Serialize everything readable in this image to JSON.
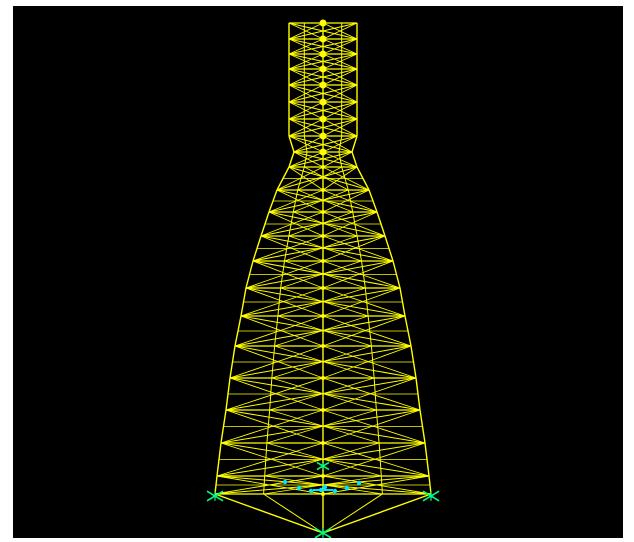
{
  "viewport": {
    "background": "#000000",
    "page_background": "#ffffff"
  },
  "model": {
    "type": "lattice-tower-wireframe",
    "member_color": "#ffff00",
    "support_color": "#00ff7f",
    "restraint_color": "#00e5ff",
    "joint_color": "#ffff00",
    "text_labels": []
  }
}
